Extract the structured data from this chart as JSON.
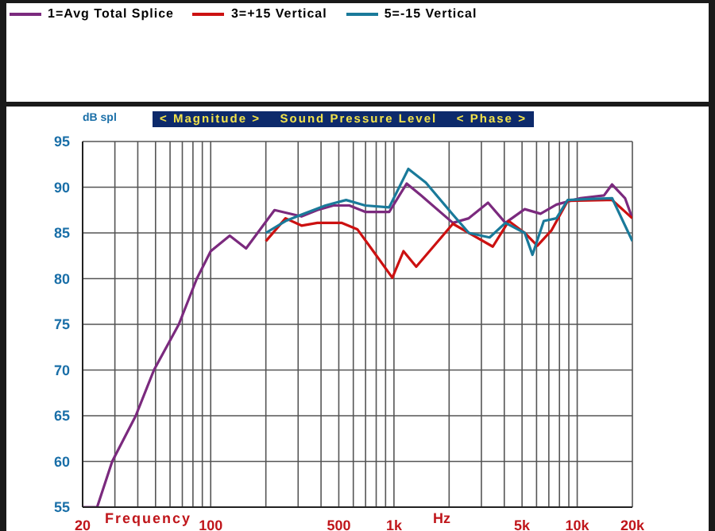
{
  "chart_data": {
    "type": "line",
    "title": "< Magnitude >    Sound Pressure Level    < Phase >",
    "xlabel": "Frequency",
    "ylabel": "dB spl",
    "annotations": [
      "Hz"
    ],
    "log": "x",
    "grid": true,
    "legend": "top left",
    "xlim": [
      20,
      20000
    ],
    "ylim": [
      55,
      95
    ],
    "xticks": [
      {
        "value": 20,
        "label": "20"
      },
      {
        "value": 30,
        "label": null
      },
      {
        "value": 40,
        "label": null
      },
      {
        "value": 50,
        "label": null
      },
      {
        "value": 60,
        "label": null
      },
      {
        "value": 70,
        "label": null
      },
      {
        "value": 80,
        "label": null
      },
      {
        "value": 90,
        "label": null
      },
      {
        "value": 100,
        "label": "100"
      },
      {
        "value": 200,
        "label": null
      },
      {
        "value": 300,
        "label": null
      },
      {
        "value": 400,
        "label": null
      },
      {
        "value": 500,
        "label": "500"
      },
      {
        "value": 600,
        "label": null
      },
      {
        "value": 700,
        "label": null
      },
      {
        "value": 800,
        "label": null
      },
      {
        "value": 900,
        "label": null
      },
      {
        "value": 1000,
        "label": "1k"
      },
      {
        "value": 2000,
        "label": null
      },
      {
        "value": 3000,
        "label": null
      },
      {
        "value": 4000,
        "label": null
      },
      {
        "value": 5000,
        "label": "5k"
      },
      {
        "value": 6000,
        "label": null
      },
      {
        "value": 7000,
        "label": null
      },
      {
        "value": 8000,
        "label": null
      },
      {
        "value": 9000,
        "label": null
      },
      {
        "value": 10000,
        "label": "10k"
      },
      {
        "value": 20000,
        "label": "20k"
      }
    ],
    "yticks": [
      55,
      60,
      65,
      70,
      75,
      80,
      85,
      90,
      95
    ],
    "series": [
      {
        "name": "1=Avg Total Splice",
        "color": "#7b2a7e",
        "x": [
          20,
          24,
          29,
          39,
          49,
          67,
          84,
          100,
          127,
          156,
          223,
          313,
          382,
          467,
          571,
          697,
          942,
          1174,
          1405,
          2097,
          2561,
          3260,
          4058,
          5169,
          6310,
          7700,
          10400,
          14000,
          15500,
          18240,
          20000
        ],
        "values": [
          55,
          55,
          60,
          65,
          70,
          75,
          80,
          83,
          84.7,
          83.3,
          87.5,
          86.8,
          87.5,
          88,
          88,
          87.3,
          87.3,
          90.4,
          89.1,
          86.1,
          86.6,
          88.3,
          86.1,
          87.6,
          87.1,
          88.1,
          88.8,
          89.1,
          90.3,
          88.8,
          86.6
        ]
      },
      {
        "name": "3=+15 Vertical",
        "color": "#cc1111",
        "x": [
          200,
          256,
          313,
          382,
          517,
          631,
          771,
          980,
          1127,
          1323,
          2097,
          2667,
          3463,
          4229,
          5169,
          6060,
          7250,
          8870,
          15500,
          20000
        ],
        "values": [
          84.1,
          86.6,
          85.8,
          86.1,
          86.1,
          85.4,
          83,
          80.1,
          83,
          81.3,
          86,
          84.8,
          83.5,
          86.3,
          85,
          83.6,
          85.3,
          88.5,
          88.6,
          86.6
        ]
      },
      {
        "name": "5=-15 Vertical",
        "color": "#1a7a9a",
        "x": [
          200,
          256,
          313,
          423,
          548,
          697,
          942,
          1198,
          1493,
          2097,
          2561,
          3326,
          4058,
          5169,
          5700,
          6570,
          7700,
          8870,
          11500,
          15500,
          20000
        ],
        "values": [
          85,
          86.3,
          87,
          88,
          88.6,
          88,
          87.8,
          92,
          90.5,
          87,
          85,
          84.5,
          86.1,
          85,
          82.6,
          86.3,
          86.6,
          88.6,
          88.7,
          88.8,
          84.1
        ]
      }
    ]
  }
}
